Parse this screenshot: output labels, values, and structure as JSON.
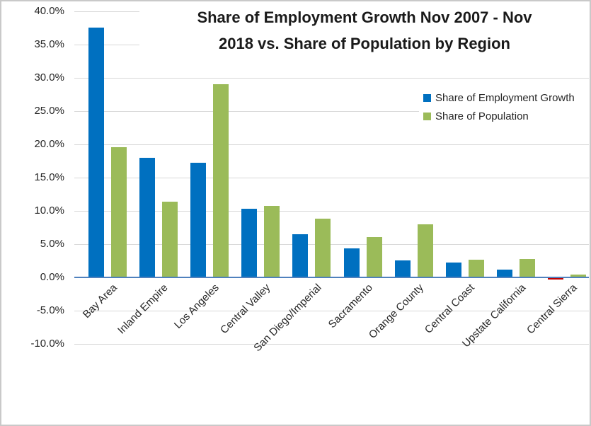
{
  "chart_data": {
    "type": "bar",
    "title": "Share of Employment Growth Nov 2007 - Nov 2018 vs. Share of Population by Region",
    "title_lines": [
      "Share of Employment Growth Nov 2007 - Nov",
      "2018 vs. Share of Population by Region"
    ],
    "categories": [
      "Bay Area",
      "Inland Empire",
      "Los Angeles",
      "Central Valley",
      "San Diego/Imperial",
      "Sacramento",
      "Orange County",
      "Central Coast",
      "Upstate California",
      "Central Sierra"
    ],
    "series": [
      {
        "name": "Share of Employment Growth",
        "color": "#0070C0",
        "negative_color": "#C00000",
        "values": [
          37.6,
          18.0,
          17.2,
          10.3,
          6.5,
          4.4,
          2.6,
          2.2,
          1.2,
          -0.2
        ]
      },
      {
        "name": "Share of Population",
        "color": "#9BBB59",
        "negative_color": "#9BBB59",
        "values": [
          19.6,
          11.4,
          29.0,
          10.7,
          8.8,
          6.1,
          8.0,
          2.7,
          2.8,
          0.4
        ]
      }
    ],
    "y_axis": {
      "min": -10,
      "max": 40,
      "step": 5,
      "unit": "%",
      "ticks": [
        {
          "value": 40,
          "label": "40.0%"
        },
        {
          "value": 35,
          "label": "35.0%"
        },
        {
          "value": 30,
          "label": "30.0%"
        },
        {
          "value": 25,
          "label": "25.0%"
        },
        {
          "value": 20,
          "label": "20.0%"
        },
        {
          "value": 15,
          "label": "15.0%"
        },
        {
          "value": 10,
          "label": "10.0%"
        },
        {
          "value": 5,
          "label": "5.0%"
        },
        {
          "value": 0,
          "label": "0.0%"
        },
        {
          "value": -5,
          "label": "-5.0%"
        },
        {
          "value": -10,
          "label": "-10.0%"
        }
      ]
    },
    "legend": {
      "position": "upper-right",
      "entries": [
        "Share of Employment Growth",
        "Share of Population"
      ]
    },
    "grid": true
  }
}
